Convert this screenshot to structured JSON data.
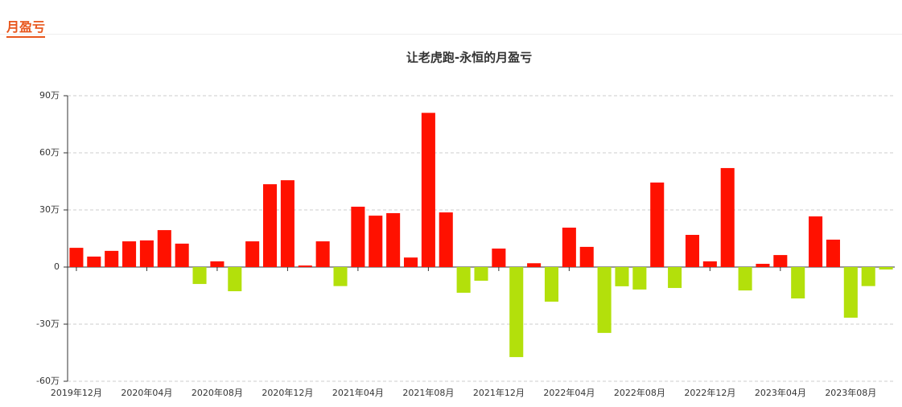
{
  "header": {
    "title": "月盈亏"
  },
  "chart_data": {
    "type": "bar",
    "title": "让老虎跑-永恒的月盈亏",
    "categories": [
      "2019年12月",
      null,
      null,
      null,
      "2020年04月",
      null,
      null,
      null,
      "2020年08月",
      null,
      null,
      null,
      "2020年12月",
      null,
      null,
      null,
      "2021年04月",
      null,
      null,
      null,
      "2021年08月",
      null,
      null,
      null,
      "2021年12月",
      null,
      null,
      null,
      "2022年04月",
      null,
      null,
      null,
      "2022年08月",
      null,
      null,
      null,
      "2022年12月",
      null,
      null,
      null,
      "2023年04月",
      null,
      null,
      null,
      "2023年08月",
      null,
      null
    ],
    "values": [
      10.1,
      5.5,
      8.5,
      13.5,
      14,
      19.4,
      12.3,
      -8.9,
      3,
      -12.7,
      13.5,
      43.5,
      45.6,
      0.8,
      13.5,
      -10,
      31.7,
      27,
      28.3,
      5,
      81,
      28.7,
      -13.5,
      -7.2,
      9.7,
      -47.3,
      2,
      -18.2,
      20.7,
      10.6,
      -34.6,
      -10.1,
      -11.8,
      44.4,
      -11,
      16.9,
      3,
      52,
      -12.3,
      1.7,
      6.3,
      -16.5,
      26.6,
      14.4,
      -26.6,
      -10,
      -1.3
    ],
    "positive_color": "#ff1100",
    "negative_color": "#b3e00b",
    "ylim": [
      -60,
      90
    ],
    "yticks": [
      {
        "value": -60,
        "label": "-60万"
      },
      {
        "value": -30,
        "label": "-30万"
      },
      0,
      {
        "value": 30,
        "label": "30万"
      },
      {
        "value": 60,
        "label": "60万"
      },
      {
        "value": 90,
        "label": "90万"
      }
    ],
    "grid": true
  }
}
